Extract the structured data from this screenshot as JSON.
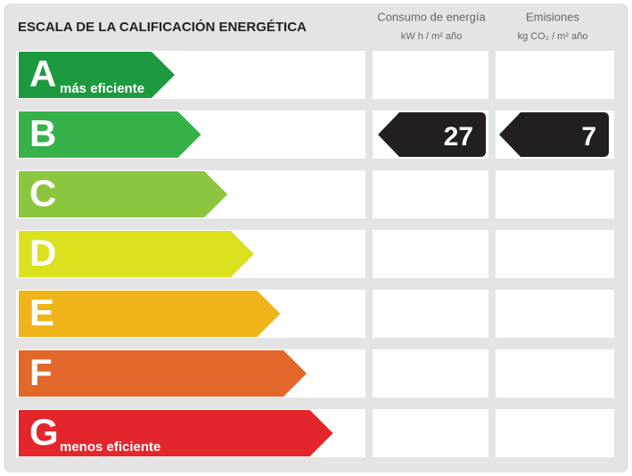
{
  "header": {
    "title": "ESCALA DE LA CALIFICACIÓN ENERGÉTICA",
    "columns": [
      {
        "title": "Consumo de energía",
        "unit": "kW h / m² año"
      },
      {
        "title": "Emisiones",
        "unit": "kg CO₂ / m² año"
      }
    ]
  },
  "scale": [
    {
      "letter": "A",
      "note": "más eficiente",
      "color": "#1d9a40",
      "energy": null,
      "emissions": null
    },
    {
      "letter": "B",
      "color": "#37b24a",
      "energy": 27,
      "emissions": 7
    },
    {
      "letter": "C",
      "color": "#8cc63f",
      "energy": null,
      "emissions": null
    },
    {
      "letter": "D",
      "color": "#dbe01f",
      "energy": null,
      "emissions": null
    },
    {
      "letter": "E",
      "color": "#efb41a",
      "energy": null,
      "emissions": null
    },
    {
      "letter": "F",
      "color": "#e1682a",
      "energy": null,
      "emissions": null
    },
    {
      "letter": "G",
      "note": "menos eficiente",
      "color": "#e3262b",
      "energy": null,
      "emissions": null
    }
  ]
}
